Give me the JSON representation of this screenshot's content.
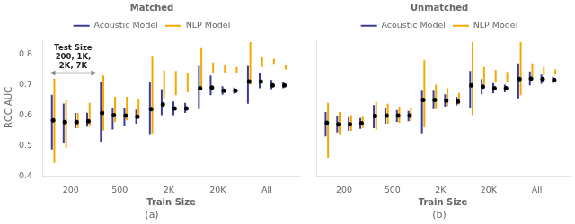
{
  "chart_data": [
    {
      "type": "range",
      "title": "Matched",
      "subtitle": "(a)",
      "xlabel": "Train Size",
      "ylabel": "ROC AUC",
      "categories": [
        "200",
        "500",
        "2K",
        "20K",
        "All"
      ],
      "ylim": [
        0.4,
        0.85
      ],
      "yticks": [
        0.4,
        0.5,
        0.6,
        0.7,
        0.8
      ],
      "grid": false,
      "legend": "top",
      "annotations": [
        {
          "text": "Test Size\n200, 1K,\n2K, 7K"
        }
      ],
      "series": [
        {
          "name": "Acoustic Model",
          "color": "#3b3b9b",
          "low": [
            [
              0.487,
              0.507,
              0.557,
              0.562
            ],
            [
              0.51,
              0.553,
              0.563,
              0.572
            ],
            [
              0.535,
              0.6,
              0.6,
              0.607
            ],
            [
              0.62,
              0.665,
              0.667,
              0.67
            ],
            [
              0.637,
              0.688,
              0.685,
              0.688
            ]
          ],
          "high": [
            [
              0.667,
              0.638,
              0.607,
              0.608
            ],
            [
              0.708,
              0.623,
              0.623,
              0.618
            ],
            [
              0.71,
              0.685,
              0.645,
              0.64
            ],
            [
              0.762,
              0.73,
              0.695,
              0.69
            ],
            [
              0.762,
              0.74,
              0.715,
              0.707
            ]
          ]
        },
        {
          "name": "NLP Model",
          "color": "#f5a800",
          "low": [
            [
              0.443,
              0.493,
              0.557,
              0.562
            ],
            [
              0.55,
              0.577,
              0.583,
              0.59
            ],
            [
              0.54,
              0.655,
              0.665,
              0.675
            ],
            [
              0.68,
              0.737,
              0.74,
              0.74
            ],
            [
              0.7,
              0.758,
              0.768,
              0.75
            ]
          ],
          "high": [
            [
              0.72,
              0.648,
              0.607,
              0.64
            ],
            [
              0.73,
              0.66,
              0.66,
              0.652
            ],
            [
              0.792,
              0.748,
              0.745,
              0.74
            ],
            [
              0.82,
              0.773,
              0.765,
              0.758
            ],
            [
              0.84,
              0.79,
              0.785,
              0.765
            ]
          ]
        },
        {
          "type": "scatter",
          "marker": "circle",
          "color": "#000000",
          "values": [
            [
              0.583,
              0.577,
              0.577,
              0.58
            ],
            [
              0.607,
              0.6,
              0.598,
              0.595
            ],
            [
              0.62,
              0.635,
              0.622,
              0.622
            ],
            [
              0.688,
              0.69,
              0.68,
              0.68
            ],
            [
              0.71,
              0.71,
              0.698,
              0.698
            ]
          ]
        }
      ]
    },
    {
      "type": "range",
      "title": "Unmatched",
      "subtitle": "(b)",
      "xlabel": "Train Size",
      "categories": [
        "200",
        "500",
        "2K",
        "20K",
        "All"
      ],
      "ylim": [
        0.4,
        0.85
      ],
      "yticks": [
        0.4,
        0.5,
        0.6,
        0.7,
        0.8
      ],
      "grid": false,
      "legend": "top",
      "tick_labels": "x",
      "series": [
        {
          "name": "Acoustic Model",
          "color": "#3b3b9b",
          "low": [
            [
              0.53,
              0.543,
              0.548,
              0.555
            ],
            [
              0.557,
              0.572,
              0.578,
              0.58
            ],
            [
              0.54,
              0.62,
              0.628,
              0.632
            ],
            [
              0.625,
              0.668,
              0.672,
              0.675
            ],
            [
              0.655,
              0.698,
              0.703,
              0.705
            ]
          ],
          "high": [
            [
              0.61,
              0.598,
              0.593,
              0.59
            ],
            [
              0.633,
              0.622,
              0.617,
              0.614
            ],
            [
              0.68,
              0.68,
              0.668,
              0.66
            ],
            [
              0.745,
              0.718,
              0.705,
              0.7
            ],
            [
              0.77,
              0.743,
              0.733,
              0.726
            ]
          ]
        },
        {
          "name": "NLP Model",
          "color": "#f5a800",
          "low": [
            [
              0.46,
              0.535,
              0.548,
              0.558
            ],
            [
              0.553,
              0.572,
              0.575,
              0.58
            ],
            [
              0.56,
              0.62,
              0.63,
              0.635
            ],
            [
              0.6,
              0.7,
              0.708,
              0.71
            ],
            [
              0.665,
              0.728,
              0.732,
              0.732
            ]
          ],
          "high": [
            [
              0.64,
              0.61,
              0.6,
              0.595
            ],
            [
              0.643,
              0.637,
              0.628,
              0.622
            ],
            [
              0.78,
              0.7,
              0.688,
              0.673
            ],
            [
              0.84,
              0.758,
              0.748,
              0.742
            ],
            [
              0.84,
              0.77,
              0.758,
              0.75
            ]
          ]
        },
        {
          "type": "scatter",
          "marker": "circle",
          "color": "#000000",
          "values": [
            [
              0.575,
              0.57,
              0.57,
              0.573
            ],
            [
              0.597,
              0.598,
              0.598,
              0.598
            ],
            [
              0.65,
              0.65,
              0.648,
              0.645
            ],
            [
              0.698,
              0.693,
              0.688,
              0.688
            ],
            [
              0.718,
              0.72,
              0.718,
              0.715
            ]
          ]
        }
      ]
    }
  ]
}
